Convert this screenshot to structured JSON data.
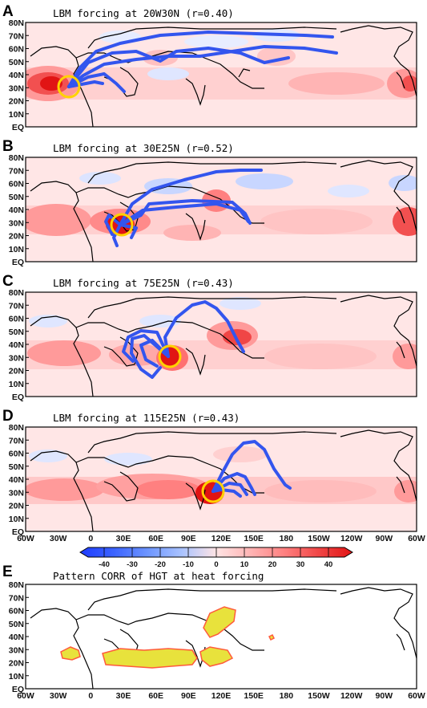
{
  "panels": [
    {
      "letter": "A",
      "title": "LBM forcing at 20W30N (r=0.40)",
      "forcing_lon": -20,
      "forcing_lat": 30
    },
    {
      "letter": "B",
      "title": "LBM forcing at 30E25N (r=0.52)",
      "forcing_lon": 30,
      "forcing_lat": 25
    },
    {
      "letter": "C",
      "title": "LBM forcing at 75E25N (r=0.43)",
      "forcing_lon": 75,
      "forcing_lat": 25
    },
    {
      "letter": "D",
      "title": "LBM forcing at 115E25N (r=0.43)",
      "forcing_lon": 115,
      "forcing_lat": 25
    },
    {
      "letter": "E",
      "title": "Pattern CORR of HGT at heat forcing"
    }
  ],
  "latitude_labels": [
    "80N",
    "70N",
    "60N",
    "50N",
    "40N",
    "30N",
    "20N",
    "10N",
    "EQ"
  ],
  "longitude_labels": [
    "60W",
    "30W",
    "0",
    "30E",
    "60E",
    "90E",
    "120E",
    "150E",
    "180",
    "150W",
    "120W",
    "90W",
    "60W"
  ],
  "colorbar": {
    "tick_labels": [
      "-40",
      "-30",
      "-20",
      "-10",
      "0",
      "10",
      "20",
      "30",
      "40"
    ],
    "colors": [
      "#1e3cff",
      "#3c64ff",
      "#6e96ff",
      "#aac3ff",
      "#e1e8ff",
      "#ffdcdc",
      "#ffb4b4",
      "#ff8080",
      "#f04646",
      "#e11414"
    ]
  },
  "colors": {
    "trajectory": "#3355ee",
    "forcing_circle": "#ffd200",
    "correlation_fill": "#e8e23c",
    "correlation_edge": "#ff5a3c"
  }
}
